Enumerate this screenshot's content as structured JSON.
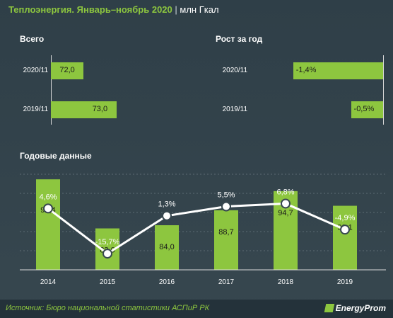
{
  "header": {
    "title": "Теплоэнергия. Январь–ноябрь 2020",
    "separator": "|",
    "unit": "млн Гкал"
  },
  "chart_data": [
    {
      "type": "bar",
      "title": "Всего",
      "categories": [
        "2020/11",
        "2019/11"
      ],
      "values": [
        72.0,
        73.0
      ],
      "labels": [
        "72,0",
        "73,0"
      ],
      "xlim": [
        71,
        74
      ]
    },
    {
      "type": "bar",
      "title": "Рост за год",
      "categories": [
        "2020/11",
        "2019/11"
      ],
      "values": [
        -1.4,
        -0.5
      ],
      "labels": [
        "-1,4%",
        "-0,5%"
      ],
      "xlim": [
        -1.65,
        0
      ]
    },
    {
      "type": "bar",
      "title": "Годовые данные",
      "categories": [
        "2014",
        "2015",
        "2016",
        "2017",
        "2018",
        "2019"
      ],
      "series": [
        {
          "type": "bar",
          "values": [
            98.4,
            83.0,
            84.0,
            88.7,
            94.7,
            90.1
          ],
          "labels": [
            "98,4",
            "83,0",
            "84,0",
            "88,7",
            "94,7",
            "90,1"
          ]
        },
        {
          "type": "line",
          "values": [
            4.6,
            -15.7,
            1.3,
            5.5,
            6.8,
            -4.9
          ],
          "labels": [
            "4,6%",
            "-15,7%",
            "1,3%",
            "5,5%",
            "6,8%",
            "-4,9%"
          ]
        }
      ],
      "bar_ylim": [
        70,
        100
      ],
      "line_ylim": [
        -23,
        20
      ],
      "grid": true
    }
  ],
  "footer": {
    "source": "Источник: Бюро национальной статистики АСПиР РК",
    "logo": "EnergyProm"
  },
  "colors": {
    "background": "#37474f",
    "accent": "#8dc63f",
    "line": "#ffffff"
  }
}
